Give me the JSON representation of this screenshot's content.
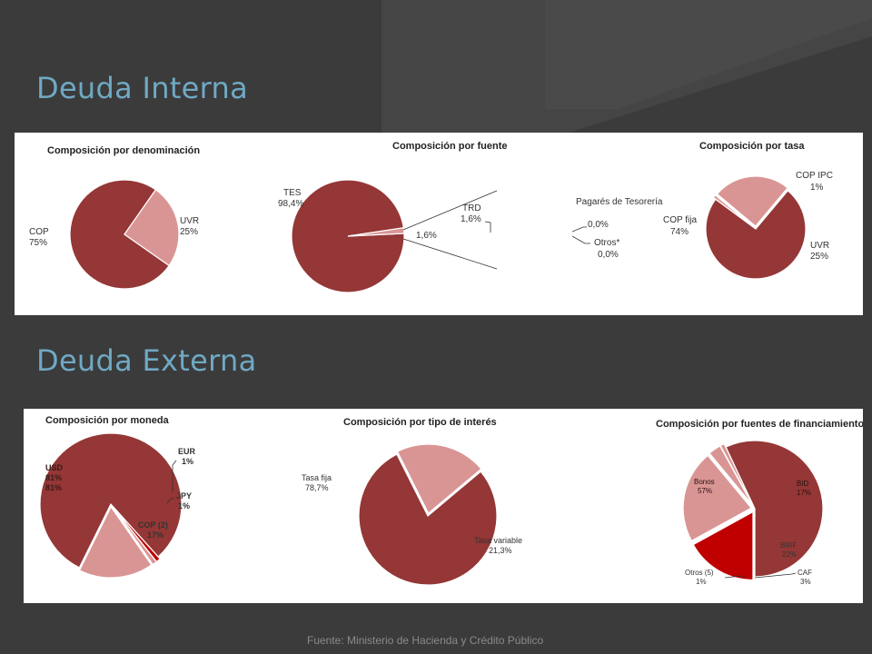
{
  "slide": {
    "heading_internal": "Deuda Interna",
    "heading_external": "Deuda Externa",
    "source": "Fuente: Ministerio de Hacienda y Crédito Público"
  },
  "colors": {
    "dark": "#943736",
    "light": "#d99594",
    "red": "#c00000"
  },
  "chart_data": [
    {
      "type": "pie",
      "id": "denominacion",
      "title": "Composición por denominación",
      "slices": [
        {
          "label": "COP",
          "value_label": "75%",
          "value": 75,
          "color": "dark"
        },
        {
          "label": "UVR",
          "value_label": "25%",
          "value": 25,
          "color": "light"
        }
      ]
    },
    {
      "type": "pie",
      "id": "fuente",
      "title": "Composición por fuente",
      "slices": [
        {
          "label": "TES",
          "value_label": "98,4%",
          "value": 98.4,
          "color": "dark"
        },
        {
          "label": "",
          "value_label": "1,6%",
          "value": 1.6,
          "color": "light"
        }
      ],
      "breakdown": {
        "slices": [
          {
            "label": "TRD",
            "value_label": "1,6%",
            "value": 1.6,
            "color": "red"
          },
          {
            "label": "Pagarés de Tesorería",
            "value_label": "0,0%",
            "value": 0.0,
            "color": "light"
          },
          {
            "label": "Otros*",
            "value_label": "0,0%",
            "value": 0.0,
            "color": "light"
          }
        ]
      }
    },
    {
      "type": "pie",
      "id": "tasa",
      "title": "Composición por tasa",
      "slices": [
        {
          "label": "COP fija",
          "value_label": "74%",
          "value": 74,
          "color": "dark"
        },
        {
          "label": "COP IPC",
          "value_label": "1%",
          "value": 1,
          "color": "light"
        },
        {
          "label": "UVR",
          "value_label": "25%",
          "value": 25,
          "color": "light"
        }
      ]
    },
    {
      "type": "pie",
      "id": "moneda",
      "title": "Composición por moneda",
      "slices": [
        {
          "label": "USD",
          "value_label": "81%",
          "value": 81,
          "color": "dark"
        },
        {
          "label": "EUR",
          "value_label": "1%",
          "value": 1,
          "color": "red"
        },
        {
          "label": "JPY",
          "value_label": "1%",
          "value": 1,
          "color": "light"
        },
        {
          "label": "COP (2)",
          "value_label": "17%",
          "value": 17,
          "color": "light"
        }
      ]
    },
    {
      "type": "pie",
      "id": "interes",
      "title": "Composición por tipo de interés",
      "slices": [
        {
          "label": "Tasa fija",
          "value_label": "78,7%",
          "value": 78.7,
          "color": "dark"
        },
        {
          "label": "Tasa variable",
          "value_label": "21,3%",
          "value": 21.3,
          "color": "light"
        }
      ]
    },
    {
      "type": "pie",
      "id": "financiamiento",
      "title": "Composición por fuentes de financiamiento",
      "slices": [
        {
          "label": "Bonos",
          "value_label": "57%",
          "value": 57,
          "color": "dark"
        },
        {
          "label": "BID",
          "value_label": "17%",
          "value": 17,
          "color": "red"
        },
        {
          "label": "BIRF",
          "value_label": "22%",
          "value": 22,
          "color": "light"
        },
        {
          "label": "CAF",
          "value_label": "3%",
          "value": 3,
          "color": "light"
        },
        {
          "label": "Otros (5)",
          "value_label": "1%",
          "value": 1,
          "color": "light"
        }
      ]
    }
  ]
}
